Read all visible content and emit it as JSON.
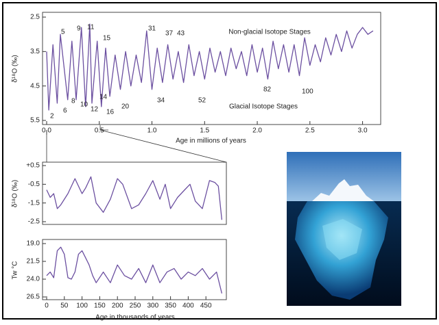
{
  "chart_data": [
    {
      "type": "line",
      "x_label": "Age in millions of years",
      "y_label": "δ¹⁸O (‰)",
      "color": "#6b4fa0",
      "y_reversed": true,
      "xlim": [
        0,
        3.12
      ],
      "ylim": [
        2.5,
        5.5
      ],
      "xticks": [
        {
          "value": 0,
          "label": "0.0"
        },
        0.5,
        {
          "value": 1,
          "label": "1.0"
        },
        1.5,
        {
          "value": 2,
          "label": "2.0"
        },
        2.5,
        {
          "value": 3,
          "label": "3.0"
        }
      ],
      "yticks": [
        2.5,
        3.5,
        4.5,
        5.5
      ],
      "x": [
        0,
        0.02,
        0.06,
        0.1,
        0.13,
        0.2,
        0.24,
        0.28,
        0.33,
        0.37,
        0.41,
        0.43,
        0.48,
        0.52,
        0.56,
        0.6,
        0.65,
        0.7,
        0.75,
        0.8,
        0.85,
        0.9,
        0.95,
        1.0,
        1.05,
        1.1,
        1.15,
        1.2,
        1.25,
        1.3,
        1.35,
        1.4,
        1.45,
        1.5,
        1.55,
        1.6,
        1.65,
        1.7,
        1.75,
        1.8,
        1.85,
        1.9,
        1.95,
        2.0,
        2.05,
        2.1,
        2.15,
        2.2,
        2.25,
        2.3,
        2.35,
        2.4,
        2.45,
        2.5,
        2.55,
        2.6,
        2.65,
        2.7,
        2.75,
        2.8,
        2.85,
        2.9,
        2.95,
        3.0,
        3.05,
        3.1
      ],
      "values": [
        3.5,
        5.2,
        3.3,
        5.0,
        3.0,
        4.9,
        3.2,
        4.9,
        2.8,
        5.1,
        2.7,
        5.0,
        3.2,
        5.1,
        3.4,
        4.8,
        3.6,
        4.6,
        3.5,
        4.5,
        3.6,
        4.4,
        2.9,
        4.6,
        3.4,
        4.4,
        3.3,
        4.3,
        3.5,
        4.4,
        3.3,
        4.2,
        3.5,
        4.3,
        3.4,
        4.1,
        3.5,
        4.2,
        3.4,
        4.0,
        3.5,
        4.2,
        3.3,
        4.1,
        3.4,
        4.3,
        3.2,
        4.0,
        3.3,
        4.1,
        3.3,
        4.2,
        3.1,
        3.9,
        3.3,
        3.8,
        3.1,
        3.6,
        3.0,
        3.5,
        2.9,
        3.4,
        3.0,
        2.8,
        3.0,
        2.9
      ],
      "annotations": [
        "2",
        "5",
        "6",
        "8",
        "9",
        "10",
        "11",
        "12",
        "14",
        "15",
        "16",
        "20",
        "31",
        "34",
        "37",
        "43",
        "52",
        "82",
        "100",
        "Non-glacial Isotope Stages",
        "Glacial Isotope Stages"
      ]
    },
    {
      "type": "line",
      "y_label": "δ¹⁸O (‰)",
      "color": "#6b4fa0",
      "xlim": [
        0,
        500
      ],
      "ylim": [
        -2.5,
        0.5
      ],
      "yticks": [
        {
          "value": 0.5,
          "label": "+0.5"
        },
        -0.5,
        -1.5,
        -2.5
      ],
      "x": [
        0,
        10,
        20,
        30,
        40,
        60,
        80,
        100,
        110,
        125,
        140,
        160,
        180,
        200,
        215,
        240,
        260,
        280,
        300,
        320,
        335,
        350,
        370,
        390,
        405,
        420,
        440,
        460,
        475,
        485,
        495
      ],
      "values": [
        -0.8,
        -1.2,
        -1.0,
        -1.8,
        -1.6,
        -1.0,
        -0.2,
        -1.0,
        -0.7,
        -0.1,
        -1.5,
        -2.0,
        -1.3,
        -0.2,
        -0.5,
        -1.8,
        -1.6,
        -1.0,
        -0.3,
        -1.3,
        -0.5,
        -1.8,
        -1.2,
        -0.8,
        -0.5,
        -1.4,
        -1.8,
        -0.3,
        -0.4,
        -0.6,
        -2.4
      ]
    },
    {
      "type": "line",
      "x_label": "Age in thousands of years",
      "y_label": "Tw °C",
      "color": "#6b4fa0",
      "y_reversed": true,
      "xlim": [
        0,
        500
      ],
      "ylim": [
        19,
        26.5
      ],
      "xticks": [
        0,
        50,
        100,
        150,
        200,
        250,
        300,
        350,
        400,
        450
      ],
      "yticks": [
        {
          "value": 19,
          "label": "19.0"
        },
        21.5,
        {
          "value": 24,
          "label": "24.0"
        },
        26.5
      ],
      "x": [
        0,
        10,
        20,
        30,
        40,
        50,
        60,
        70,
        80,
        90,
        100,
        110,
        120,
        130,
        140,
        160,
        180,
        200,
        220,
        240,
        260,
        280,
        300,
        320,
        340,
        360,
        380,
        400,
        420,
        440,
        460,
        480,
        495
      ],
      "values": [
        23.5,
        23.0,
        23.8,
        20.0,
        19.5,
        20.5,
        23.8,
        24.0,
        23.0,
        20.5,
        20.0,
        21.0,
        22.0,
        23.5,
        24.5,
        23.0,
        24.5,
        22.0,
        23.5,
        24.0,
        22.5,
        24.5,
        22.0,
        24.5,
        23.0,
        22.5,
        24.0,
        23.0,
        23.5,
        22.5,
        24.0,
        23.0,
        26.0
      ]
    }
  ]
}
